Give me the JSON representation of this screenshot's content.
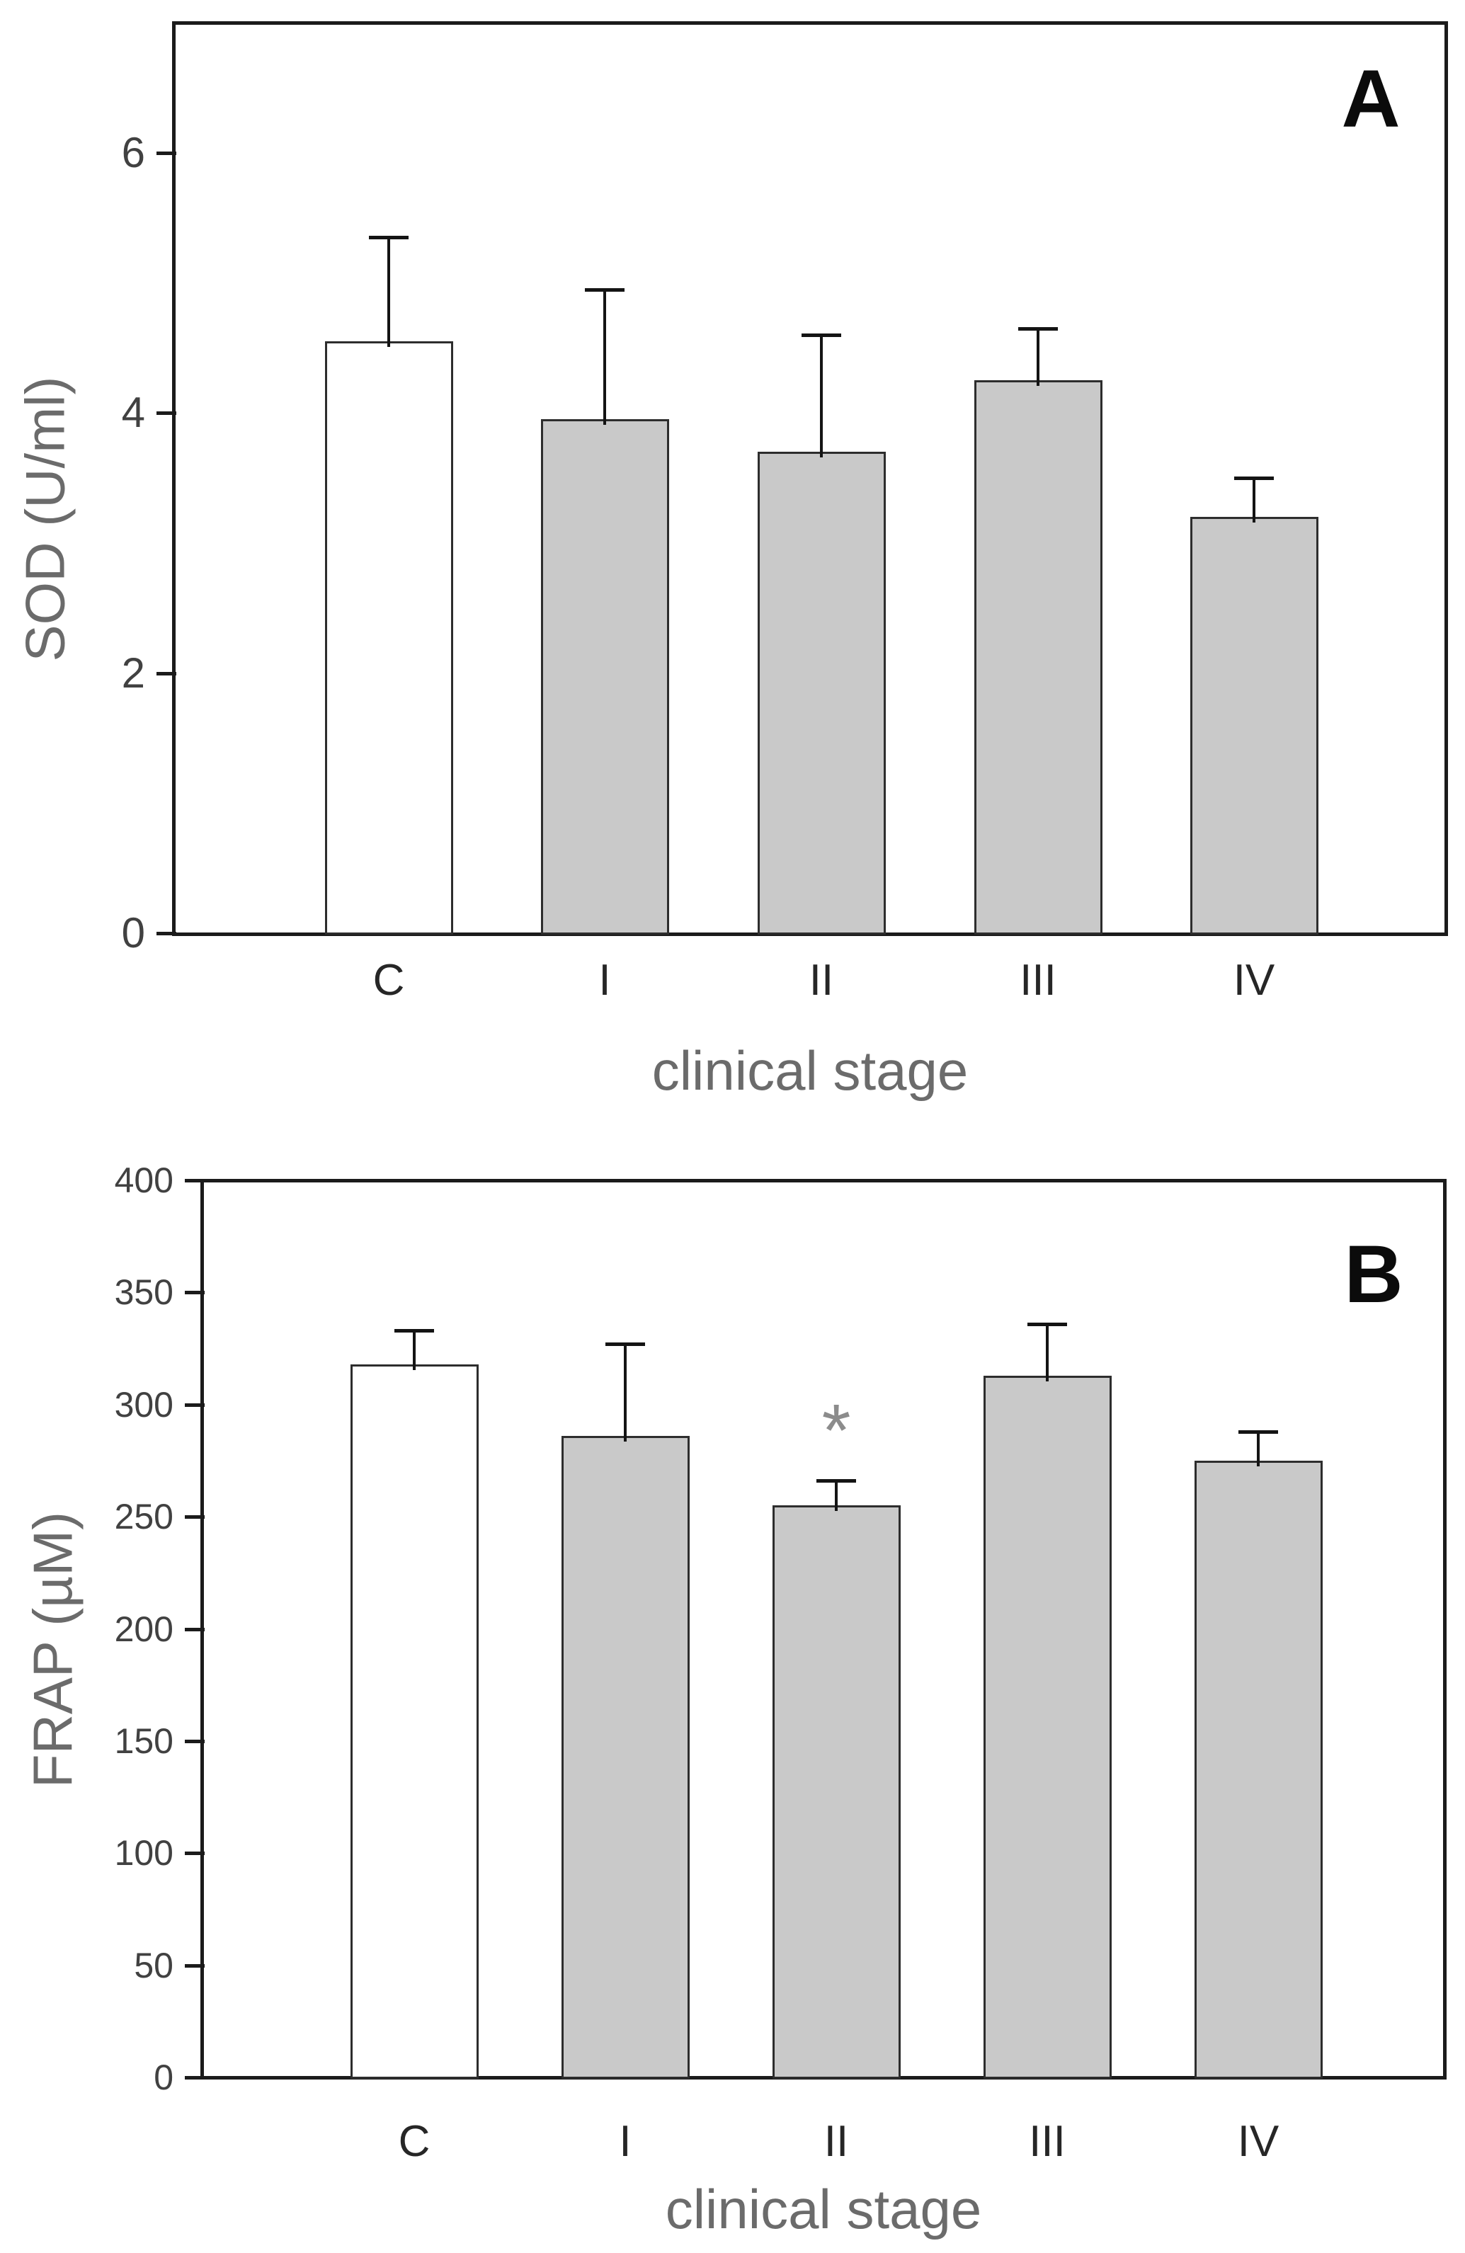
{
  "figure": {
    "background": "#ffffff",
    "panel_count": 2
  },
  "colors": {
    "bar_gray": "#c9c9c9",
    "bar_white": "#ffffff",
    "bar_border": "#2d2d2d",
    "frame": "#1b1b1b",
    "error_bar": "#141414",
    "tick_label": "#414141",
    "category_label": "#262626",
    "axis_title": "#6b6b6b",
    "panel_letter": "#0b0b0b",
    "annotation": "#8c8c8c"
  },
  "chart_data": [
    {
      "type": "bar",
      "panel_label": "A",
      "title": "",
      "xlabel": "clinical stage",
      "ylabel": "SOD (U/ml)",
      "categories": [
        "C",
        "I",
        "II",
        "III",
        "IV"
      ],
      "values": [
        4.55,
        3.95,
        3.7,
        4.25,
        3.2
      ],
      "errors_up": [
        0.8,
        1.0,
        0.9,
        0.4,
        0.3
      ],
      "bar_colors": [
        "#ffffff",
        "#c9c9c9",
        "#c9c9c9",
        "#c9c9c9",
        "#c9c9c9"
      ],
      "ylim": [
        0,
        7
      ],
      "yticks": [
        0,
        2,
        4,
        6
      ],
      "grid": false,
      "legend": false,
      "annotations": []
    },
    {
      "type": "bar",
      "panel_label": "B",
      "title": "",
      "xlabel": "clinical stage",
      "ylabel": "FRAP (µM)",
      "categories": [
        "C",
        "I",
        "II",
        "III",
        "IV"
      ],
      "values": [
        318,
        286,
        255,
        313,
        275
      ],
      "errors_up": [
        15,
        41,
        11,
        23,
        13
      ],
      "bar_colors": [
        "#ffffff",
        "#c9c9c9",
        "#c9c9c9",
        "#c9c9c9",
        "#c9c9c9"
      ],
      "ylim": [
        0,
        400
      ],
      "yticks": [
        0,
        50,
        100,
        150,
        200,
        250,
        300,
        350,
        400
      ],
      "grid": false,
      "legend": false,
      "annotations": [
        {
          "category": "II",
          "symbol": "*"
        }
      ]
    }
  ]
}
